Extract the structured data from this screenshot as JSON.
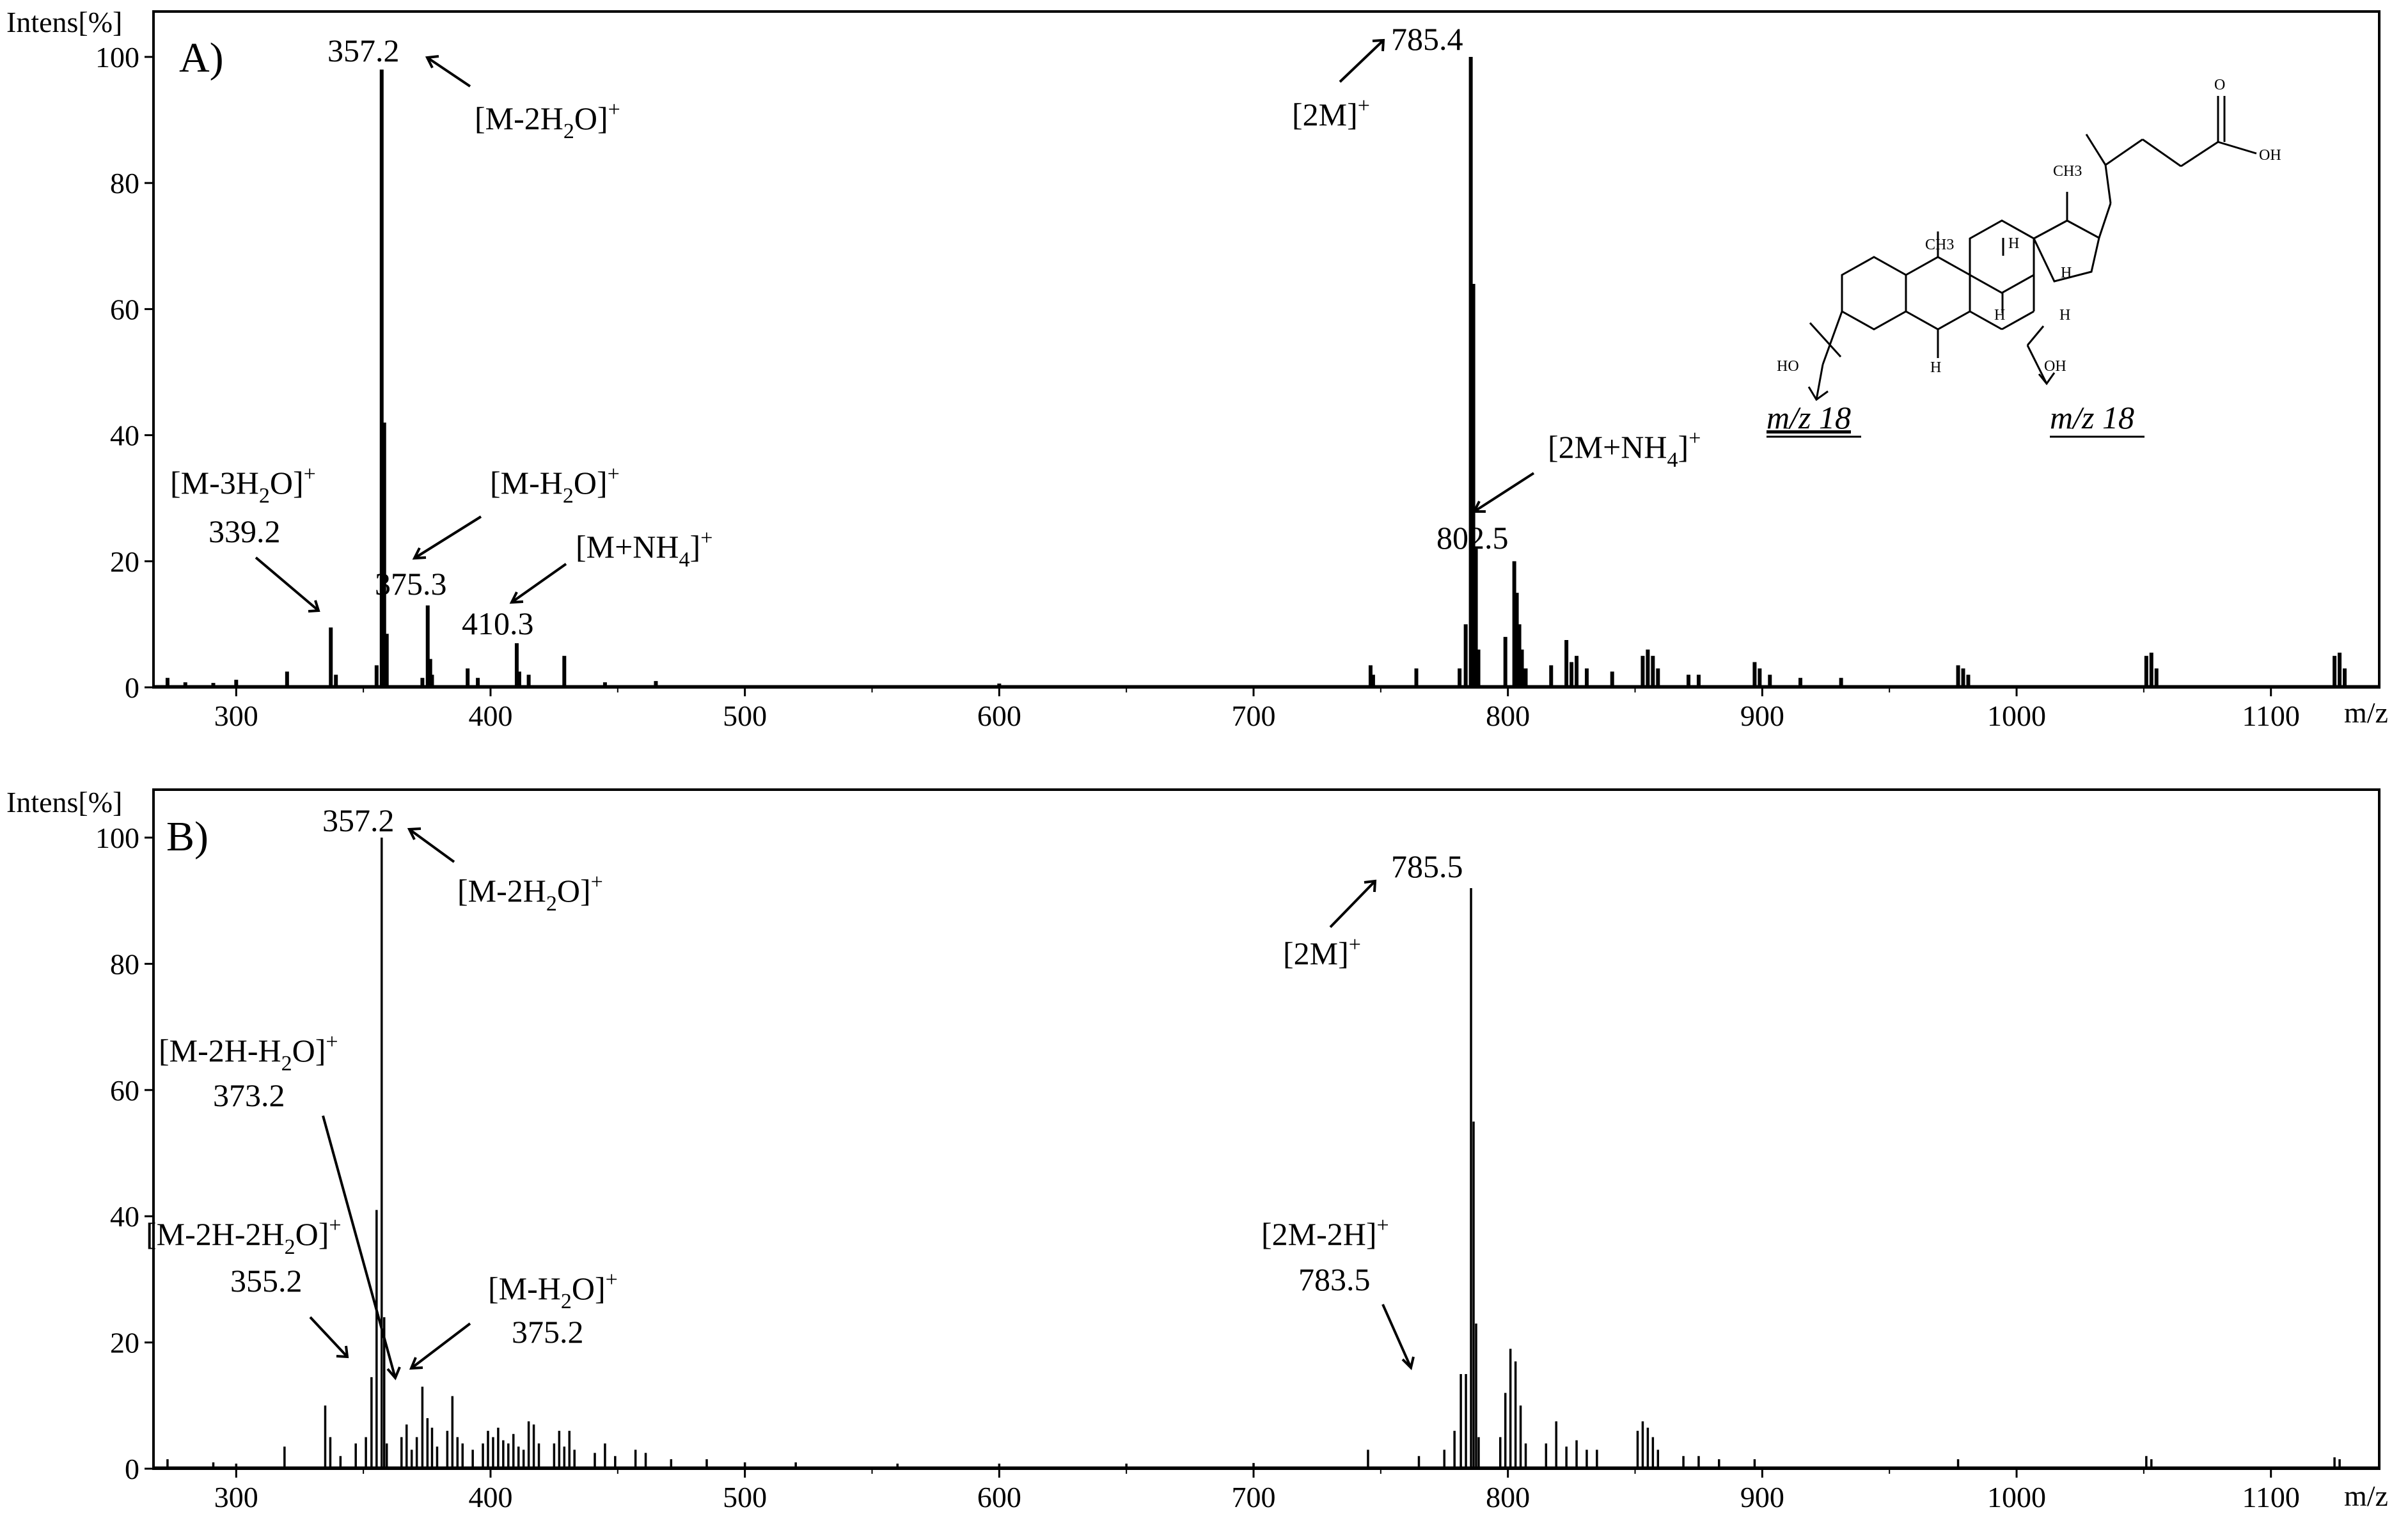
{
  "chart_data": [
    {
      "type": "bar",
      "panel_label": "A)",
      "ylabel": "Intens[%]",
      "xlabel": "m/z",
      "xlim": [
        270,
        1130
      ],
      "ylim": [
        0,
        100
      ],
      "xticks": [
        300,
        400,
        500,
        600,
        700,
        800,
        900,
        1000,
        1100
      ],
      "yticks": [
        0,
        20,
        40,
        60,
        80,
        100
      ],
      "peaks": [
        {
          "x": 273,
          "y": 1.5
        },
        {
          "x": 280,
          "y": 0.8
        },
        {
          "x": 291,
          "y": 0.7
        },
        {
          "x": 300,
          "y": 1.2
        },
        {
          "x": 320,
          "y": 2.5
        },
        {
          "x": 337.2,
          "y": 9.5
        },
        {
          "x": 339.2,
          "y": 2.0
        },
        {
          "x": 355.2,
          "y": 3.5
        },
        {
          "x": 357.2,
          "y": 98
        },
        {
          "x": 358.2,
          "y": 42
        },
        {
          "x": 359.2,
          "y": 8.5
        },
        {
          "x": 373.2,
          "y": 1.5
        },
        {
          "x": 375.3,
          "y": 13
        },
        {
          "x": 376.3,
          "y": 4.5
        },
        {
          "x": 377,
          "y": 2.0
        },
        {
          "x": 391,
          "y": 3.0
        },
        {
          "x": 395,
          "y": 1.5
        },
        {
          "x": 410.3,
          "y": 7.0
        },
        {
          "x": 411.3,
          "y": 2.5
        },
        {
          "x": 415,
          "y": 2.0
        },
        {
          "x": 429,
          "y": 5.0
        },
        {
          "x": 445,
          "y": 0.8
        },
        {
          "x": 465,
          "y": 1.0
        },
        {
          "x": 600,
          "y": 0.6
        },
        {
          "x": 746,
          "y": 3.5
        },
        {
          "x": 747,
          "y": 2.0
        },
        {
          "x": 764,
          "y": 3.0
        },
        {
          "x": 781,
          "y": 3.0
        },
        {
          "x": 783.4,
          "y": 10
        },
        {
          "x": 785.4,
          "y": 100
        },
        {
          "x": 786.4,
          "y": 64
        },
        {
          "x": 787.4,
          "y": 22
        },
        {
          "x": 788.4,
          "y": 6.0
        },
        {
          "x": 799,
          "y": 8.0
        },
        {
          "x": 802.5,
          "y": 20
        },
        {
          "x": 803.5,
          "y": 15
        },
        {
          "x": 804.5,
          "y": 10
        },
        {
          "x": 805.5,
          "y": 6.0
        },
        {
          "x": 807,
          "y": 3.0
        },
        {
          "x": 817,
          "y": 3.5
        },
        {
          "x": 823,
          "y": 7.5
        },
        {
          "x": 825,
          "y": 4.0
        },
        {
          "x": 827,
          "y": 5.0
        },
        {
          "x": 831,
          "y": 3.0
        },
        {
          "x": 841,
          "y": 2.5
        },
        {
          "x": 853,
          "y": 5.0
        },
        {
          "x": 855,
          "y": 6.0
        },
        {
          "x": 857,
          "y": 5.0
        },
        {
          "x": 859,
          "y": 3.0
        },
        {
          "x": 871,
          "y": 2.0
        },
        {
          "x": 875,
          "y": 2.0
        },
        {
          "x": 897,
          "y": 4.0
        },
        {
          "x": 899,
          "y": 3.0
        },
        {
          "x": 903,
          "y": 2.0
        },
        {
          "x": 915,
          "y": 1.5
        },
        {
          "x": 931,
          "y": 1.5
        },
        {
          "x": 977,
          "y": 3.5
        },
        {
          "x": 979,
          "y": 3.0
        },
        {
          "x": 981,
          "y": 2.0
        },
        {
          "x": 1051,
          "y": 5.0
        },
        {
          "x": 1053,
          "y": 5.5
        },
        {
          "x": 1055,
          "y": 3.0
        },
        {
          "x": 1125,
          "y": 5.0
        },
        {
          "x": 1127,
          "y": 5.5
        },
        {
          "x": 1129,
          "y": 3.0
        }
      ],
      "peak_labels": [
        {
          "text": "357.2",
          "x": 357.2
        },
        {
          "text": "339.2",
          "x": 339.2
        },
        {
          "text": "375.3",
          "x": 375.3
        },
        {
          "text": "410.3",
          "x": 410.3
        },
        {
          "text": "785.4",
          "x": 785.4
        },
        {
          "text": "802.5",
          "x": 802.5
        }
      ],
      "ion_labels": [
        {
          "base": "[M-2H",
          "sub": "2",
          "tail": "O]",
          "sup": "+"
        },
        {
          "base": "[M-3H",
          "sub": "2",
          "tail": "O]",
          "sup": "+"
        },
        {
          "base": "[M-H",
          "sub": "2",
          "tail": "O]",
          "sup": "+"
        },
        {
          "base": "[M+NH",
          "sub": "4",
          "tail": "]",
          "sup": "+"
        },
        {
          "base": "[2M]",
          "sub": "",
          "tail": "",
          "sup": "+"
        },
        {
          "base": "[2M+NH",
          "sub": "4",
          "tail": "]",
          "sup": "+"
        }
      ],
      "structure": {
        "labels": [
          "CH3",
          "CH3",
          "H",
          "H",
          "H",
          "H",
          "H",
          "HO",
          "OH",
          "O",
          "OH"
        ],
        "fragment_labels": [
          "m/z 18",
          "m/z 18"
        ]
      }
    },
    {
      "type": "bar",
      "panel_label": "B)",
      "ylabel": "Intens[%]",
      "xlabel": "m/z",
      "xlim": [
        270,
        1130
      ],
      "ylim": [
        0,
        100
      ],
      "xticks": [
        300,
        400,
        500,
        600,
        700,
        800,
        900,
        1000,
        1100
      ],
      "yticks": [
        0,
        20,
        40,
        60,
        80,
        100
      ],
      "peaks": [
        {
          "x": 273,
          "y": 1.5
        },
        {
          "x": 291,
          "y": 1.0
        },
        {
          "x": 300,
          "y": 0.8
        },
        {
          "x": 319,
          "y": 3.5
        },
        {
          "x": 335,
          "y": 10
        },
        {
          "x": 337,
          "y": 5.0
        },
        {
          "x": 341,
          "y": 2.0
        },
        {
          "x": 347,
          "y": 4.0
        },
        {
          "x": 351,
          "y": 5.0
        },
        {
          "x": 353.2,
          "y": 14.5
        },
        {
          "x": 355.2,
          "y": 41
        },
        {
          "x": 357.2,
          "y": 100
        },
        {
          "x": 358.2,
          "y": 24
        },
        {
          "x": 359.2,
          "y": 4.0
        },
        {
          "x": 365,
          "y": 5.0
        },
        {
          "x": 367,
          "y": 7.0
        },
        {
          "x": 369,
          "y": 3.0
        },
        {
          "x": 371,
          "y": 5.0
        },
        {
          "x": 373.2,
          "y": 13
        },
        {
          "x": 375.2,
          "y": 8.0
        },
        {
          "x": 377,
          "y": 6.5
        },
        {
          "x": 379,
          "y": 3.5
        },
        {
          "x": 383,
          "y": 6.0
        },
        {
          "x": 385,
          "y": 11.5
        },
        {
          "x": 387,
          "y": 5.0
        },
        {
          "x": 389,
          "y": 4.0
        },
        {
          "x": 393,
          "y": 3.0
        },
        {
          "x": 397,
          "y": 4.0
        },
        {
          "x": 399,
          "y": 6.0
        },
        {
          "x": 401,
          "y": 5.0
        },
        {
          "x": 403,
          "y": 6.5
        },
        {
          "x": 405,
          "y": 4.5
        },
        {
          "x": 407,
          "y": 4.0
        },
        {
          "x": 409,
          "y": 5.5
        },
        {
          "x": 411,
          "y": 3.5
        },
        {
          "x": 413,
          "y": 3.0
        },
        {
          "x": 415,
          "y": 7.5
        },
        {
          "x": 417,
          "y": 7.0
        },
        {
          "x": 419,
          "y": 4.0
        },
        {
          "x": 425,
          "y": 4.0
        },
        {
          "x": 427,
          "y": 6.0
        },
        {
          "x": 429,
          "y": 3.5
        },
        {
          "x": 431,
          "y": 6.0
        },
        {
          "x": 433,
          "y": 3.0
        },
        {
          "x": 441,
          "y": 2.5
        },
        {
          "x": 445,
          "y": 4.0
        },
        {
          "x": 449,
          "y": 2.0
        },
        {
          "x": 457,
          "y": 3.0
        },
        {
          "x": 461,
          "y": 2.5
        },
        {
          "x": 471,
          "y": 1.5
        },
        {
          "x": 485,
          "y": 1.5
        },
        {
          "x": 500,
          "y": 1.0
        },
        {
          "x": 520,
          "y": 1.0
        },
        {
          "x": 560,
          "y": 0.8
        },
        {
          "x": 600,
          "y": 0.8
        },
        {
          "x": 650,
          "y": 0.8
        },
        {
          "x": 700,
          "y": 0.9
        },
        {
          "x": 745,
          "y": 3.0
        },
        {
          "x": 765,
          "y": 2.0
        },
        {
          "x": 775,
          "y": 3.0
        },
        {
          "x": 779,
          "y": 6.0
        },
        {
          "x": 781.5,
          "y": 15
        },
        {
          "x": 783.5,
          "y": 15
        },
        {
          "x": 785.5,
          "y": 92
        },
        {
          "x": 786.5,
          "y": 55
        },
        {
          "x": 787.5,
          "y": 23
        },
        {
          "x": 788.5,
          "y": 5.0
        },
        {
          "x": 797,
          "y": 5.0
        },
        {
          "x": 799,
          "y": 12
        },
        {
          "x": 801,
          "y": 19
        },
        {
          "x": 803,
          "y": 17
        },
        {
          "x": 805,
          "y": 10
        },
        {
          "x": 807,
          "y": 4.0
        },
        {
          "x": 815,
          "y": 4.0
        },
        {
          "x": 819,
          "y": 7.5
        },
        {
          "x": 823,
          "y": 3.5
        },
        {
          "x": 827,
          "y": 4.5
        },
        {
          "x": 831,
          "y": 3.0
        },
        {
          "x": 835,
          "y": 3.0
        },
        {
          "x": 851,
          "y": 6.0
        },
        {
          "x": 853,
          "y": 7.5
        },
        {
          "x": 855,
          "y": 6.5
        },
        {
          "x": 857,
          "y": 5.0
        },
        {
          "x": 859,
          "y": 3.0
        },
        {
          "x": 869,
          "y": 2.0
        },
        {
          "x": 875,
          "y": 2.0
        },
        {
          "x": 883,
          "y": 1.5
        },
        {
          "x": 897,
          "y": 1.5
        },
        {
          "x": 977,
          "y": 1.5
        },
        {
          "x": 1051,
          "y": 2.0
        },
        {
          "x": 1053,
          "y": 1.5
        },
        {
          "x": 1125,
          "y": 1.8
        },
        {
          "x": 1127,
          "y": 1.5
        }
      ],
      "peak_labels": [
        {
          "text": "357.2",
          "x": 357.2
        },
        {
          "text": "373.2",
          "x": 373.2
        },
        {
          "text": "355.2",
          "x": 355.2
        },
        {
          "text": "375.2",
          "x": 375.2
        },
        {
          "text": "785.5",
          "x": 785.5
        },
        {
          "text": "783.5",
          "x": 783.5
        }
      ],
      "ion_labels": [
        {
          "base": "[M-2H",
          "sub": "2",
          "tail": "O]",
          "sup": "+"
        },
        {
          "base": "[M-2H-H",
          "sub": "2",
          "tail": "O]",
          "sup": "+"
        },
        {
          "base": "[M-2H-2H",
          "sub": "2",
          "tail": "O]",
          "sup": "+"
        },
        {
          "base": "[M-H",
          "sub": "2",
          "tail": "O]",
          "sup": "+"
        },
        {
          "base": "[2M]",
          "sub": "",
          "tail": "",
          "sup": "+"
        },
        {
          "base": "[2M-2H]",
          "sub": "",
          "tail": "",
          "sup": "+"
        }
      ]
    }
  ]
}
